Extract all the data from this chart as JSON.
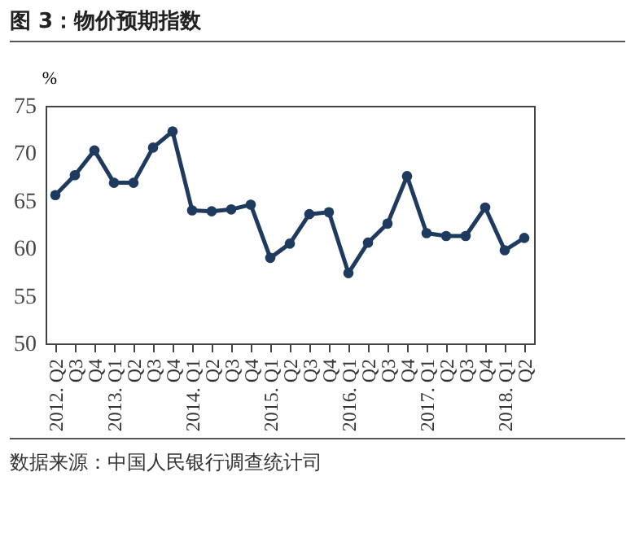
{
  "chart_data": {
    "type": "line",
    "title": "图 3：物价预期指数",
    "ylabel": "%",
    "categories": [
      "2012. Q2",
      "Q3",
      "Q4",
      "2013. Q1",
      "Q2",
      "Q3",
      "Q4",
      "2014. Q1",
      "Q2",
      "Q3",
      "Q4",
      "2015. Q1",
      "Q2",
      "Q3",
      "Q4",
      "2016. Q1",
      "Q2",
      "Q3",
      "Q4",
      "2017. Q1",
      "Q2",
      "Q3",
      "Q4",
      "2018. Q1",
      "Q2"
    ],
    "series": [
      {
        "color": "#1f3a5f",
        "values": [
          65.6,
          67.7,
          70.3,
          66.9,
          66.9,
          70.6,
          72.3,
          64.0,
          63.9,
          64.1,
          64.6,
          59.0,
          60.5,
          63.6,
          63.8,
          57.4,
          60.6,
          62.6,
          67.6,
          61.6,
          61.3,
          61.3,
          64.3,
          59.8,
          61.1
        ]
      }
    ],
    "ylim": [
      50,
      75
    ],
    "yticks": [
      50,
      55,
      60,
      65,
      70,
      75
    ],
    "grid": false,
    "legend": false,
    "marker": "circle",
    "line_style": "solid",
    "annotations": [
      "数据来源：中国人民银行调查统计司"
    ]
  }
}
